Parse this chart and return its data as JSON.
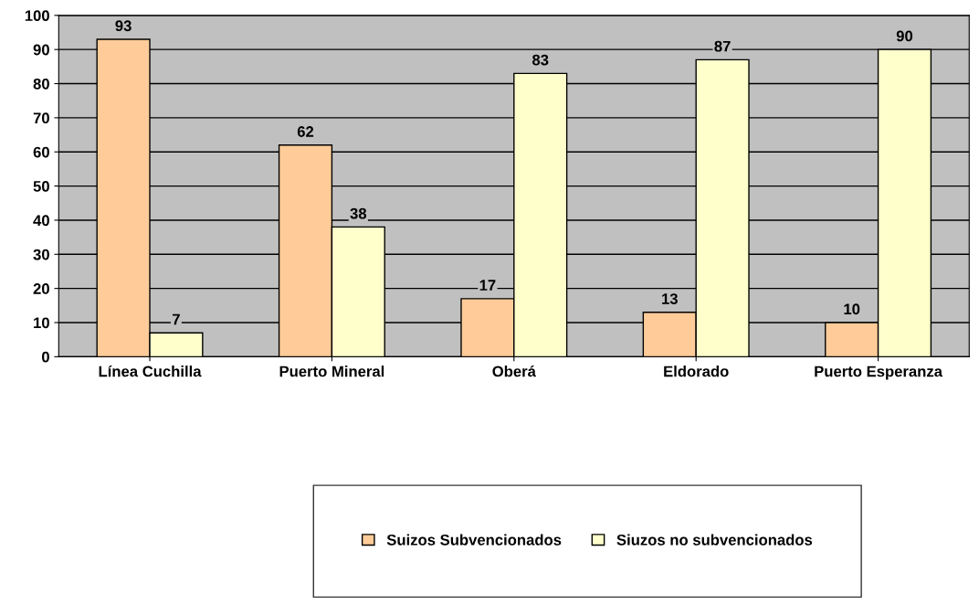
{
  "chart_data": {
    "type": "bar",
    "categories": [
      "Línea Cuchilla",
      "Puerto Mineral",
      "Oberá",
      "Eldorado",
      "Puerto Esperanza"
    ],
    "series": [
      {
        "name": "Suizos Subvencionados",
        "color": "#ffcc99",
        "values": [
          93,
          62,
          17,
          13,
          10
        ]
      },
      {
        "name": "Siuzos no subvencionados",
        "color": "#ffffcc",
        "values": [
          7,
          38,
          83,
          87,
          90
        ]
      }
    ],
    "ylim": [
      0,
      100
    ],
    "yticks": [
      0,
      10,
      20,
      30,
      40,
      50,
      60,
      70,
      80,
      90,
      100
    ],
    "grid": "y",
    "legend": "bottom",
    "data_labels": true
  }
}
